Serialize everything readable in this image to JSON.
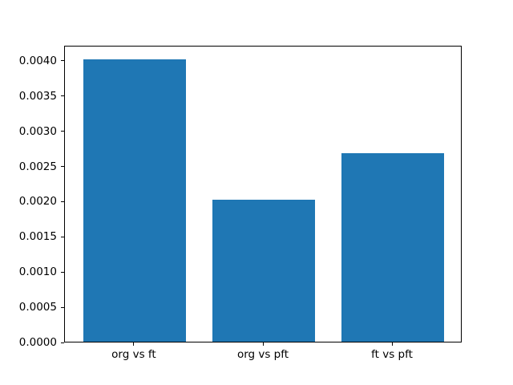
{
  "figure": {
    "background": "#ffffff",
    "spine_color": "#000000",
    "text_color": "#000000"
  },
  "chart_data": {
    "type": "bar",
    "title": "",
    "xlabel": "",
    "ylabel": "",
    "categories": [
      "org vs ft",
      "org vs pft",
      "ft vs pft"
    ],
    "values": [
      0.00401,
      0.00202,
      0.00268
    ],
    "bar_color": "#1f77b4",
    "bar_width": 0.8,
    "xlim": [
      -0.54,
      2.54
    ],
    "ylim": [
      0,
      0.004215
    ],
    "yticks": [
      {
        "value": 0.0,
        "label": "0.0000"
      },
      {
        "value": 0.0005,
        "label": "0.0005"
      },
      {
        "value": 0.001,
        "label": "0.0010"
      },
      {
        "value": 0.0015,
        "label": "0.0015"
      },
      {
        "value": 0.002,
        "label": "0.0020"
      },
      {
        "value": 0.0025,
        "label": "0.0025"
      },
      {
        "value": 0.003,
        "label": "0.0030"
      },
      {
        "value": 0.0035,
        "label": "0.0035"
      },
      {
        "value": 0.004,
        "label": "0.0040"
      }
    ],
    "grid": false,
    "legend_position": "none"
  }
}
